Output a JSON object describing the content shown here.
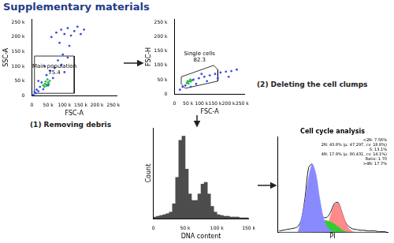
{
  "title": "Supplementary materials",
  "steps": [
    "(1) Removing debris",
    "(2) Deleting the cell clumps"
  ],
  "chart_data": [
    {
      "type": "scatter",
      "x_label": "FSC-A",
      "y_label": "SSC-A",
      "xlim": [
        0,
        260000
      ],
      "ylim": [
        0,
        260000
      ],
      "xticks": [
        0,
        {
          "value": 50000,
          "label": "50 k"
        },
        {
          "value": 100000,
          "label": "100 k"
        },
        {
          "value": 150000,
          "label": "150 k"
        },
        {
          "value": 200000,
          "label": "200 k"
        },
        {
          "value": 250000,
          "label": "250 k"
        }
      ],
      "yticks": [
        0,
        {
          "value": 50000,
          "label": "50 k"
        },
        {
          "value": 100000,
          "label": "100 k"
        },
        {
          "value": 150000,
          "label": "150 k"
        },
        {
          "value": 200000,
          "label": "200 k"
        },
        {
          "value": 250000,
          "label": "250 k"
        }
      ],
      "gate": {
        "label": "Main population",
        "value": 75.4,
        "points": [
          [
            8000,
            8000
          ],
          [
            8000,
            135000
          ],
          [
            130000,
            135000
          ],
          [
            130000,
            8000
          ]
        ]
      },
      "series": [
        {
          "color": "#3a4fe0",
          "points": [
            [
              5000,
              3000
            ],
            [
              8000,
              12000
            ],
            [
              12000,
              8000
            ],
            [
              15000,
              20000
            ],
            [
              20000,
              15000
            ],
            [
              25000,
              30000
            ],
            [
              30000,
              45000
            ],
            [
              35000,
              22000
            ],
            [
              45000,
              70000
            ],
            [
              55000,
              85000
            ],
            [
              65000,
              60000
            ],
            [
              70000,
              95000
            ],
            [
              80000,
              120000
            ],
            [
              90000,
              105000
            ],
            [
              95000,
              140000
            ],
            [
              100000,
              80000
            ],
            [
              110000,
              130000
            ],
            [
              60000,
              200000
            ],
            [
              75000,
              215000
            ],
            [
              90000,
              225000
            ],
            [
              100000,
              210000
            ],
            [
              110000,
              230000
            ],
            [
              120000,
              205000
            ],
            [
              130000,
              220000
            ],
            [
              140000,
              235000
            ],
            [
              150000,
              210000
            ],
            [
              160000,
              225000
            ],
            [
              85000,
              180000
            ],
            [
              115000,
              170000
            ],
            [
              40000,
              100000
            ],
            [
              50000,
              35000
            ],
            [
              20000,
              50000
            ]
          ]
        },
        {
          "color": "#2fb84a",
          "points": [
            [
              35000,
              35000
            ],
            [
              40000,
              40000
            ],
            [
              45000,
              38000
            ],
            [
              42000,
              48000
            ],
            [
              50000,
              45000
            ],
            [
              38000,
              30000
            ],
            [
              48000,
              55000
            ],
            [
              55000,
              50000
            ],
            [
              44000,
              33000
            ],
            [
              52000,
              40000
            ]
          ]
        }
      ]
    },
    {
      "type": "scatter",
      "x_label": "FSC-A",
      "y_label": "FSC-H",
      "xlim": [
        0,
        260000
      ],
      "ylim": [
        0,
        260000
      ],
      "xticks": [
        0,
        {
          "value": 50000,
          "label": "50 k"
        },
        {
          "value": 100000,
          "label": "100 k"
        },
        {
          "value": 150000,
          "label": "150 k"
        },
        {
          "value": 200000,
          "label": "200 k"
        },
        {
          "value": 250000,
          "label": "250 k"
        }
      ],
      "yticks": [
        0,
        {
          "value": 50000,
          "label": "50 k"
        },
        {
          "value": 100000,
          "label": "100 k"
        },
        {
          "value": 150000,
          "label": "150 k"
        },
        {
          "value": 200000,
          "label": "200 k"
        },
        {
          "value": 250000,
          "label": "250 k"
        }
      ],
      "gate": {
        "label": "Single cells",
        "value": 82.3,
        "points": [
          [
            25000,
            35000
          ],
          [
            25000,
            60000
          ],
          [
            145000,
            100000
          ],
          [
            160000,
            85000
          ],
          [
            160000,
            45000
          ],
          [
            40000,
            20000
          ]
        ]
      },
      "series": [
        {
          "color": "#3a4fe0",
          "points": [
            [
              20000,
              15000
            ],
            [
              30000,
              25000
            ],
            [
              40000,
              30000
            ],
            [
              70000,
              50000
            ],
            [
              90000,
              55000
            ],
            [
              110000,
              60000
            ],
            [
              130000,
              65000
            ],
            [
              150000,
              70000
            ],
            [
              170000,
              75000
            ],
            [
              190000,
              78000
            ],
            [
              210000,
              80000
            ],
            [
              230000,
              85000
            ],
            [
              120000,
              45000
            ],
            [
              160000,
              55000
            ],
            [
              200000,
              60000
            ],
            [
              100000,
              70000
            ],
            [
              60000,
              25000
            ],
            [
              80000,
              35000
            ]
          ]
        },
        {
          "color": "#2fb84a",
          "points": [
            [
              45000,
              38000
            ],
            [
              50000,
              42000
            ],
            [
              55000,
              45000
            ],
            [
              60000,
              44000
            ],
            [
              65000,
              48000
            ],
            [
              52000,
              36000
            ],
            [
              58000,
              50000
            ],
            [
              48000,
              45000
            ]
          ]
        }
      ]
    },
    {
      "type": "histogram",
      "x_label": "DNA content",
      "y_label": "Count",
      "xlim": [
        0,
        150000
      ],
      "ylim": [
        0,
        110
      ],
      "xticks": [
        0,
        {
          "value": 50000,
          "label": "50 k"
        },
        {
          "value": 100000,
          "label": "100 k"
        },
        {
          "value": 150000,
          "label": "150 k"
        }
      ],
      "tick_labels": "x",
      "color": "#4d4d4d",
      "bins": [
        0,
        5000,
        10000,
        15000,
        20000,
        25000,
        30000,
        35000,
        40000,
        45000,
        50000,
        55000,
        60000,
        65000,
        70000,
        75000,
        80000,
        85000,
        90000,
        95000,
        100000,
        105000,
        110000,
        115000,
        120000,
        125000,
        130000,
        135000,
        140000,
        145000,
        150000
      ],
      "counts": [
        2,
        3,
        4,
        5,
        6,
        8,
        18,
        50,
        95,
        100,
        60,
        30,
        22,
        22,
        30,
        42,
        44,
        30,
        15,
        8,
        5,
        4,
        3,
        3,
        2,
        2,
        2,
        1,
        1,
        1
      ]
    },
    {
      "type": "line",
      "title": "Cell cycle analysis",
      "x_label": "PI",
      "xlim": [
        0,
        150000
      ],
      "ylim": [
        0,
        140
      ],
      "tick_labels": false,
      "annotations": [
        "<2N: 7.56%",
        "2N: 43.8% (µ: 47,297, cv: 18.8%)",
        "S: 13.1%",
        "4N: 17.9% (µ: 80,431, cv: 14.1%)",
        "Ratio: 1.70",
        ">4N: 17.7%"
      ],
      "x": [
        2500,
        7500,
        12500,
        17500,
        22500,
        27500,
        32500,
        37500,
        42500,
        47500,
        52500,
        57500,
        62500,
        67500,
        72500,
        77500,
        82500,
        87500,
        92500,
        97500,
        102500,
        107500,
        112500,
        117500,
        122500,
        127500,
        132500,
        137500,
        142500,
        147500
      ],
      "series": [
        {
          "type": "area",
          "color": "#8a8aff",
          "values": [
            0,
            0,
            0,
            0,
            0,
            0,
            20,
            45,
            80,
            100,
            85,
            50,
            22,
            8,
            2,
            0,
            0,
            0,
            0,
            0,
            0,
            0,
            0,
            0,
            0,
            0,
            0,
            0,
            0,
            0
          ]
        },
        {
          "type": "area",
          "color": "#33cc33",
          "values": [
            0,
            0,
            0,
            0,
            0,
            0,
            0,
            0,
            0,
            0,
            10,
            15,
            17,
            17,
            15,
            12,
            8,
            4,
            1,
            0,
            0,
            0,
            0,
            0,
            0,
            0,
            0,
            0,
            0,
            0
          ]
        },
        {
          "type": "area",
          "color": "#ff8a8a",
          "values": [
            0,
            0,
            0,
            0,
            0,
            0,
            0,
            0,
            0,
            0,
            0,
            0,
            0,
            8,
            25,
            40,
            43,
            30,
            15,
            5,
            1,
            0,
            0,
            0,
            0,
            0,
            0,
            0,
            0,
            0
          ]
        },
        {
          "type": "line",
          "color": "#000000",
          "values": [
            2,
            3,
            4,
            5,
            6,
            8,
            18,
            50,
            95,
            100,
            60,
            30,
            22,
            22,
            30,
            42,
            44,
            30,
            15,
            8,
            5,
            4,
            3,
            3,
            2,
            2,
            2,
            1,
            1,
            1
          ]
        }
      ]
    }
  ]
}
